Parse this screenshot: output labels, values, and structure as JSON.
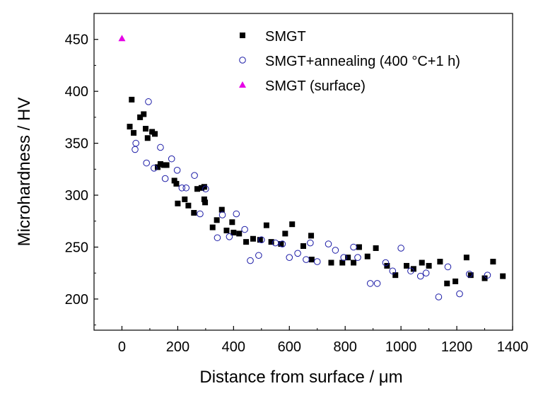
{
  "chart_data": {
    "type": "scatter",
    "xlabel": "Distance from surface / μm",
    "ylabel": "Microhardness / HV",
    "xlim": [
      -100,
      1400
    ],
    "ylim": [
      170,
      475
    ],
    "xticks": [
      0,
      200,
      400,
      600,
      800,
      1000,
      1200,
      1400
    ],
    "yticks": [
      200,
      250,
      300,
      350,
      400,
      450
    ],
    "grid": false,
    "legend_position": "top-right",
    "series": [
      {
        "name": "SMGT",
        "marker": "square-filled",
        "color": "#000000",
        "points": [
          [
            28,
            366
          ],
          [
            35,
            392
          ],
          [
            42,
            360
          ],
          [
            65,
            375
          ],
          [
            78,
            378
          ],
          [
            85,
            364
          ],
          [
            92,
            355
          ],
          [
            108,
            361
          ],
          [
            118,
            359
          ],
          [
            128,
            327
          ],
          [
            138,
            330
          ],
          [
            150,
            329
          ],
          [
            160,
            329
          ],
          [
            188,
            314
          ],
          [
            195,
            311
          ],
          [
            200,
            292
          ],
          [
            225,
            296
          ],
          [
            238,
            290
          ],
          [
            258,
            283
          ],
          [
            270,
            306
          ],
          [
            285,
            307
          ],
          [
            295,
            308
          ],
          [
            295,
            296
          ],
          [
            298,
            293
          ],
          [
            325,
            269
          ],
          [
            340,
            276
          ],
          [
            358,
            286
          ],
          [
            375,
            266
          ],
          [
            395,
            274
          ],
          [
            400,
            264
          ],
          [
            420,
            263
          ],
          [
            445,
            255
          ],
          [
            470,
            258
          ],
          [
            495,
            257
          ],
          [
            518,
            271
          ],
          [
            535,
            255
          ],
          [
            570,
            253
          ],
          [
            585,
            263
          ],
          [
            610,
            272
          ],
          [
            650,
            251
          ],
          [
            678,
            261
          ],
          [
            680,
            238
          ],
          [
            750,
            235
          ],
          [
            790,
            235
          ],
          [
            810,
            240
          ],
          [
            830,
            235
          ],
          [
            850,
            250
          ],
          [
            880,
            241
          ],
          [
            910,
            249
          ],
          [
            950,
            232
          ],
          [
            980,
            223
          ],
          [
            1020,
            232
          ],
          [
            1045,
            229
          ],
          [
            1075,
            235
          ],
          [
            1100,
            232
          ],
          [
            1140,
            236
          ],
          [
            1165,
            215
          ],
          [
            1195,
            217
          ],
          [
            1235,
            240
          ],
          [
            1250,
            223
          ],
          [
            1300,
            220
          ],
          [
            1330,
            236
          ],
          [
            1365,
            222
          ]
        ]
      },
      {
        "name": "SMGT+annealing (400 °C+1 h)",
        "marker": "circle-open",
        "color": "#1a1aa6",
        "points": [
          [
            47,
            344
          ],
          [
            50,
            350
          ],
          [
            88,
            331
          ],
          [
            95,
            390
          ],
          [
            115,
            326
          ],
          [
            138,
            346
          ],
          [
            155,
            316
          ],
          [
            178,
            335
          ],
          [
            198,
            324
          ],
          [
            215,
            307
          ],
          [
            230,
            307
          ],
          [
            260,
            319
          ],
          [
            280,
            282
          ],
          [
            300,
            306
          ],
          [
            342,
            259
          ],
          [
            360,
            281
          ],
          [
            385,
            260
          ],
          [
            410,
            282
          ],
          [
            440,
            267
          ],
          [
            460,
            237
          ],
          [
            490,
            242
          ],
          [
            500,
            257
          ],
          [
            550,
            254
          ],
          [
            575,
            253
          ],
          [
            600,
            240
          ],
          [
            630,
            244
          ],
          [
            660,
            238
          ],
          [
            675,
            254
          ],
          [
            700,
            236
          ],
          [
            740,
            253
          ],
          [
            765,
            247
          ],
          [
            795,
            240
          ],
          [
            830,
            250
          ],
          [
            845,
            240
          ],
          [
            890,
            215
          ],
          [
            915,
            215
          ],
          [
            945,
            235
          ],
          [
            970,
            227
          ],
          [
            1000,
            249
          ],
          [
            1035,
            227
          ],
          [
            1070,
            222
          ],
          [
            1090,
            225
          ],
          [
            1135,
            202
          ],
          [
            1168,
            231
          ],
          [
            1210,
            205
          ],
          [
            1245,
            224
          ],
          [
            1310,
            223
          ]
        ]
      },
      {
        "name": "SMGT (surface)",
        "marker": "triangle-filled",
        "color": "#e600e6",
        "points": [
          [
            0,
            451
          ]
        ]
      }
    ]
  }
}
